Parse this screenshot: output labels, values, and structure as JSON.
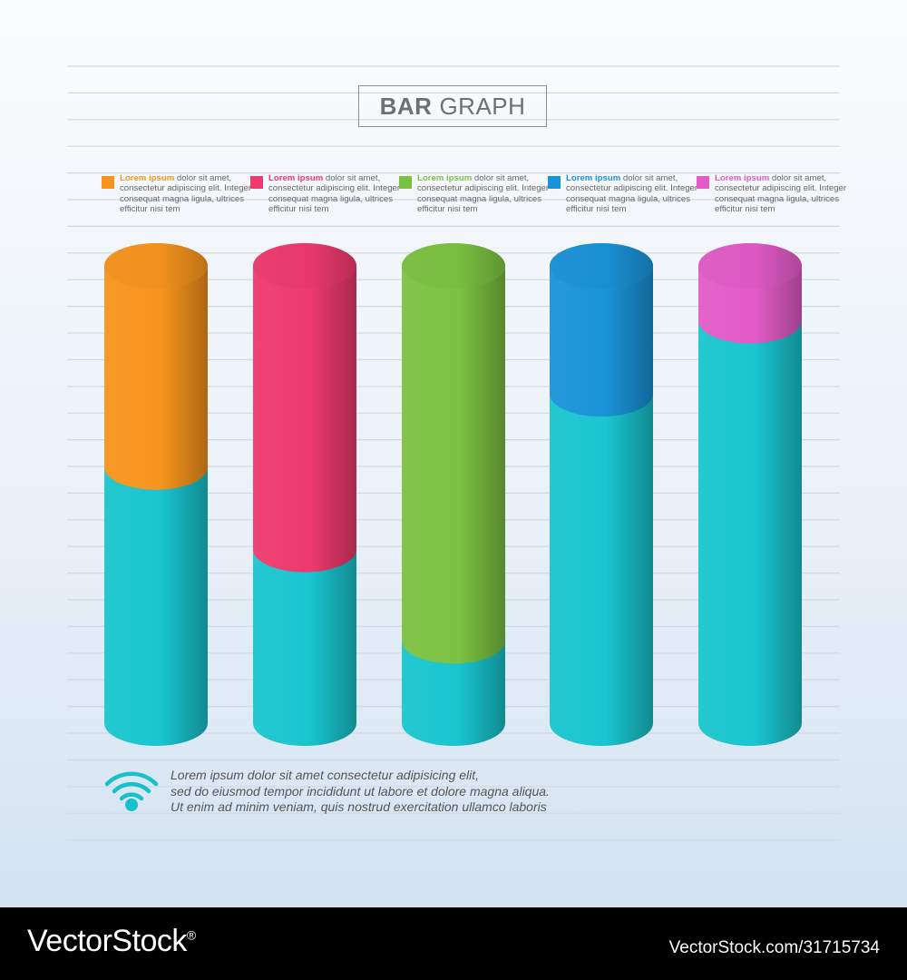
{
  "title": {
    "bold": "BAR",
    "rest": "GRAPH"
  },
  "legend": [
    {
      "head": "Lorem ipsum",
      "text": "dolor sit amet, consectetur adipiscing elit. Integer consequat magna ligula, ultrices efficitur nisi tem",
      "color": "#f7941d"
    },
    {
      "head": "Lorem ipsum",
      "text": "dolor sit amet, consectetur adipiscing elit. Integer consequat magna ligula, ultrices efficitur nisi tem",
      "color": "#ee3a6e"
    },
    {
      "head": "Lorem ipsum",
      "text": "dolor sit amet, consectetur adipiscing elit. Integer consequat magna ligula, ultrices efficitur nisi tem",
      "color": "#7cc242"
    },
    {
      "head": "Lorem ipsum",
      "text": "dolor sit amet, consectetur adipiscing elit. Integer consequat magna ligula, ultrices efficitur nisi tem",
      "color": "#1a93d8"
    },
    {
      "head": "Lorem ipsum",
      "text": "dolor sit amet, consectetur adipiscing elit. Integer consequat magna ligula, ultrices efficitur nisi tem",
      "color": "#e25bc8"
    }
  ],
  "chart_data": {
    "type": "bar",
    "style": "3d-cylinder-stacked",
    "grid": true,
    "ylim": [
      0,
      100
    ],
    "columns": [
      {
        "base": 56,
        "top": 44,
        "top_color": "#f7941d"
      },
      {
        "base": 38,
        "top": 62,
        "top_color": "#ee3a6e"
      },
      {
        "base": 18,
        "top": 82,
        "top_color": "#7cc242"
      },
      {
        "base": 72,
        "top": 28,
        "top_color": "#1a93d8"
      },
      {
        "base": 88,
        "top": 12,
        "top_color": "#e25bc8"
      }
    ],
    "base_color": "#19c5cf"
  },
  "footer": {
    "lines": [
      "Lorem ipsum dolor sit amet  consectetur adipisicing elit,",
      "sed do eiusmod tempor incididunt ut labore et dolore magna aliqua.",
      "Ut enim ad minim veniam, quis nostrud exercitation ullamco laboris"
    ]
  },
  "watermark": {
    "brand": "VectorStock",
    "reg": "®",
    "id": "VectorStock.com/31715734"
  }
}
